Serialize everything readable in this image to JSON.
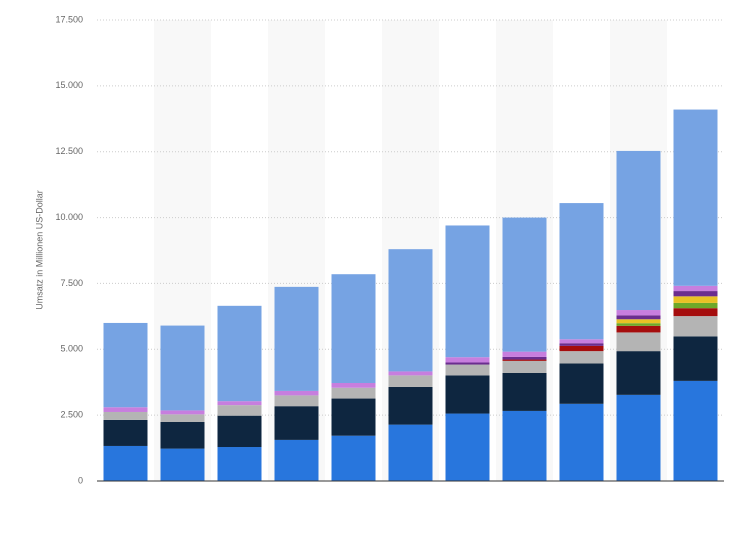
{
  "chart_data": {
    "type": "bar",
    "stacked": true,
    "y_label": "Umsatz in Millionen US-Dollar",
    "categories": [
      null,
      null,
      null,
      null,
      null,
      null,
      null,
      null,
      null,
      null,
      null
    ],
    "series": [
      {
        "color": "#2876dd",
        "values": [
          1330,
          1230,
          1290,
          1560,
          1720,
          2140,
          2560,
          2660,
          2930,
          3270,
          3800
        ]
      },
      {
        "color": "#0e2640",
        "values": [
          990,
          1010,
          1190,
          1280,
          1410,
          1430,
          1450,
          1440,
          1530,
          1660,
          1690
        ]
      },
      {
        "color": "#b4b4b4",
        "values": [
          300,
          290,
          400,
          410,
          410,
          440,
          410,
          460,
          470,
          710,
          770
        ]
      },
      {
        "color": "#a50d0d",
        "values": [
          0,
          0,
          0,
          0,
          0,
          0,
          0,
          50,
          200,
          250,
          300
        ]
      },
      {
        "color": "#6ea829",
        "values": [
          0,
          0,
          0,
          0,
          0,
          0,
          0,
          0,
          0,
          100,
          200
        ]
      },
      {
        "color": "#e8c125",
        "values": [
          0,
          0,
          0,
          0,
          0,
          0,
          0,
          0,
          0,
          150,
          250
        ]
      },
      {
        "color": "#6b2d8f",
        "values": [
          0,
          0,
          0,
          0,
          0,
          0,
          80,
          100,
          100,
          150,
          200
        ]
      },
      {
        "color": "#c77ede",
        "values": [
          180,
          150,
          150,
          170,
          180,
          150,
          200,
          200,
          150,
          200,
          200
        ]
      },
      {
        "color": "#76a3e3",
        "values": [
          3200,
          3220,
          3620,
          3950,
          4130,
          4640,
          5000,
          5090,
          5170,
          6040,
          6690
        ]
      }
    ],
    "ylim": [
      0,
      17500
    ],
    "yticks": [
      0,
      {
        "value": 2500,
        "label": "2.500"
      },
      {
        "value": 5000,
        "label": "5.000"
      },
      {
        "value": 7500,
        "label": "7.500"
      },
      {
        "value": 10000,
        "label": "10.000"
      },
      {
        "value": 12500,
        "label": "12.500"
      },
      {
        "value": 15000,
        "label": "15.000"
      },
      {
        "value": 17500,
        "label": "17.500"
      }
    ],
    "grid": true
  }
}
